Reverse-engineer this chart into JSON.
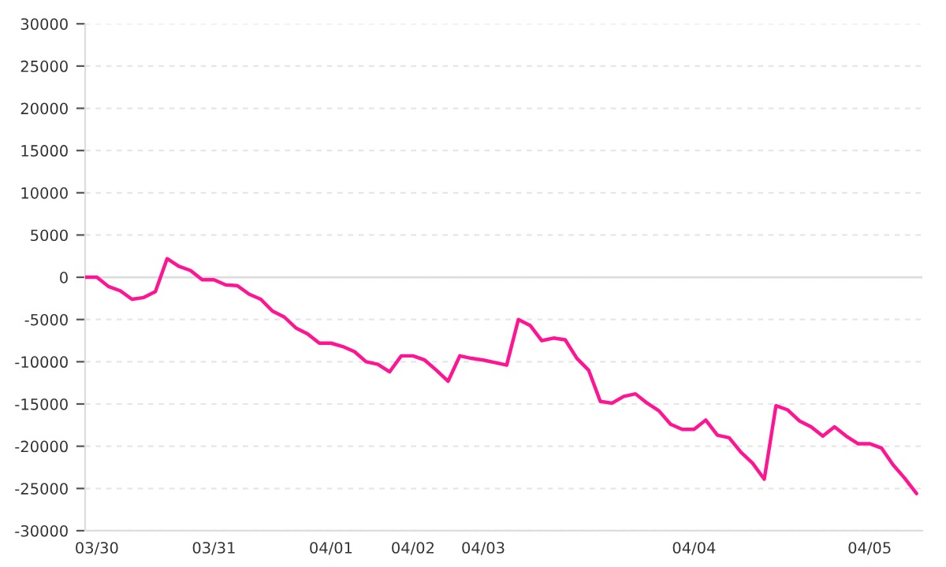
{
  "chart_data": {
    "type": "line",
    "categories": [
      null,
      "03/30",
      null,
      null,
      null,
      null,
      null,
      null,
      null,
      null,
      null,
      "03/31",
      null,
      null,
      null,
      null,
      null,
      null,
      null,
      null,
      null,
      "04/01",
      null,
      null,
      null,
      null,
      null,
      null,
      "04/02",
      null,
      null,
      null,
      null,
      null,
      "04/03",
      null,
      null,
      null,
      null,
      null,
      null,
      null,
      null,
      null,
      null,
      null,
      null,
      null,
      null,
      null,
      null,
      null,
      "04/04",
      null,
      null,
      null,
      null,
      null,
      null,
      null,
      null,
      null,
      null,
      null,
      null,
      null,
      null,
      "04/05",
      null,
      null,
      null,
      null
    ],
    "series": [
      {
        "color": "#ff1493",
        "values": [
          0,
          0,
          -1100,
          -1600,
          -2600,
          -2400,
          -1700,
          2200,
          1300,
          800,
          -300,
          -300,
          -900,
          -1000,
          -2000,
          -2600,
          -4000,
          -4700,
          -6000,
          -6700,
          -7800,
          -7800,
          -8200,
          -8800,
          -10000,
          -10300,
          -11200,
          -9300,
          -9300,
          -9800,
          -11000,
          -12300,
          -9300,
          -9600,
          -9800,
          -10100,
          -10400,
          -5000,
          -5700,
          -7500,
          -7200,
          -7400,
          -9600,
          -11000,
          -14700,
          -14900,
          -14100,
          -13800,
          -14900,
          -15800,
          -17400,
          -18000,
          -18000,
          -16900,
          -18700,
          -19000,
          -20700,
          -22000,
          -23900,
          -15200,
          -15700,
          -17000,
          -17700,
          -18800,
          -17700,
          -18800,
          -19700,
          -19700,
          -20200,
          -22200,
          -23800,
          -25600
        ]
      }
    ],
    "ylim": [
      -30000,
      30000
    ],
    "yticks": [
      -30000,
      -25000,
      -20000,
      -15000,
      -10000,
      -5000,
      0,
      5000,
      10000,
      15000,
      20000,
      25000,
      30000
    ],
    "grid": "y",
    "ref_lines": [
      {
        "axis": "y",
        "value": 0,
        "color": "#dddddd",
        "line_style": "solid"
      }
    ],
    "line_style": "solid",
    "marker": "none"
  }
}
